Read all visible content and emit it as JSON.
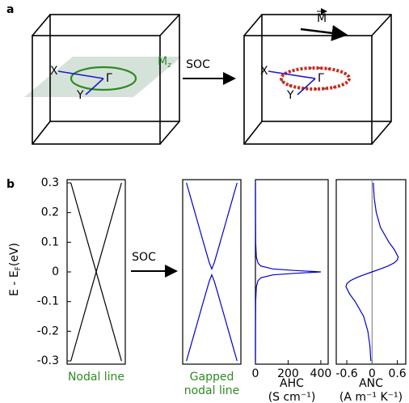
{
  "panel_labels": [
    "a",
    "b"
  ],
  "diagram": {
    "left": {
      "x_label": "X",
      "y_label": "Y",
      "gamma_label": "Γ",
      "plane_label": "M",
      "plane_subscript": "z"
    },
    "arrow_label": "SOC",
    "right": {
      "x_label": "X",
      "y_label": "Y",
      "gamma_label": "Γ",
      "magnetization_label": "M"
    }
  },
  "arrow_b_label": "SOC",
  "chart_data": [
    {
      "type": "line",
      "ylabel": "E - E",
      "ylabel_subscript": "F",
      "ylabel_suffix": "(eV)",
      "xlabel": [
        "Nodal line"
      ],
      "xlabel_color": "#2e8b22",
      "x": [
        -1,
        1
      ],
      "xlim": [
        -1.15,
        1.15
      ],
      "ylim": [
        -0.3,
        0.3
      ],
      "yticks": [
        -0.3,
        -0.2,
        -0.1,
        0,
        0.1,
        0.2,
        0.3
      ],
      "series": [
        {
          "color": "#000000",
          "values": [
            0.3,
            -0.3
          ]
        },
        {
          "color": "#000000",
          "values": [
            -0.3,
            0.3
          ]
        }
      ]
    },
    {
      "type": "line",
      "xlabel": [
        "Gapped",
        "nodal line"
      ],
      "xlabel_color": "#2e8b22",
      "x": [
        -1,
        -0.9,
        -0.8,
        -0.7,
        -0.6,
        -0.5,
        -0.4,
        -0.3,
        -0.2,
        -0.1,
        0,
        0.1,
        0.2,
        0.3,
        0.4,
        0.5,
        0.6,
        0.7,
        0.8,
        0.9,
        1
      ],
      "xlim": [
        -1.15,
        1.15
      ],
      "ylim": [
        -0.3,
        0.3
      ],
      "series": [
        {
          "color": "#0000cc",
          "values": [
            0.3,
            0.2702,
            0.2402,
            0.2102,
            0.1803,
            0.1503,
            0.1204,
            0.0906,
            0.0608,
            0.0316,
            0.01,
            0.0316,
            0.0608,
            0.0906,
            0.1204,
            0.1503,
            0.1803,
            0.2102,
            0.2402,
            0.2702,
            0.3
          ]
        },
        {
          "color": "#0000cc",
          "values": [
            -0.3,
            -0.2702,
            -0.2402,
            -0.2102,
            -0.1803,
            -0.1503,
            -0.1204,
            -0.0906,
            -0.0608,
            -0.0316,
            -0.01,
            -0.0316,
            -0.0608,
            -0.0906,
            -0.1204,
            -0.1503,
            -0.1803,
            -0.2102,
            -0.2402,
            -0.2702,
            -0.3
          ]
        }
      ]
    },
    {
      "type": "profile",
      "xlabel": [
        "AHC",
        "(S cm⁻¹)"
      ],
      "color": "#0000cc",
      "y": [
        -0.3,
        -0.2,
        -0.1,
        -0.05,
        -0.03,
        -0.02,
        -0.01,
        -0.005,
        0,
        0.005,
        0.01,
        0.02,
        0.03,
        0.05,
        0.1,
        0.2,
        0.3
      ],
      "x": [
        0.16,
        0.36,
        1.43,
        5.7,
        15.4,
        33,
        106,
        236,
        400,
        236,
        106,
        33,
        15.4,
        5.7,
        1.43,
        0.36,
        0.16
      ],
      "xlim": [
        0,
        445
      ],
      "xticks": [
        0,
        200,
        400
      ],
      "ylim": [
        -0.3,
        0.3
      ]
    },
    {
      "type": "profile",
      "xlabel": [
        "ANC",
        "(A m⁻¹ K⁻¹)"
      ],
      "color": "#0000cc",
      "zero_line": true,
      "y": [
        -0.3,
        -0.25,
        -0.2,
        -0.15,
        -0.1,
        -0.075,
        -0.05,
        -0.04,
        -0.03,
        -0.02,
        -0.01,
        0,
        0.01,
        0.02,
        0.03,
        0.04,
        0.05,
        0.075,
        0.1,
        0.15,
        0.2,
        0.25,
        0.3
      ],
      "x": [
        -0.03,
        -0.05,
        -0.1,
        -0.2,
        -0.4,
        -0.53,
        -0.62,
        -0.6,
        -0.52,
        -0.38,
        -0.2,
        0,
        0.2,
        0.38,
        0.52,
        0.6,
        0.62,
        0.53,
        0.4,
        0.2,
        0.1,
        0.05,
        0.03
      ],
      "xlim": [
        -0.85,
        0.8
      ],
      "xticks": [
        -0.6,
        0,
        0.6
      ],
      "ylim": [
        -0.3,
        0.3
      ]
    }
  ]
}
